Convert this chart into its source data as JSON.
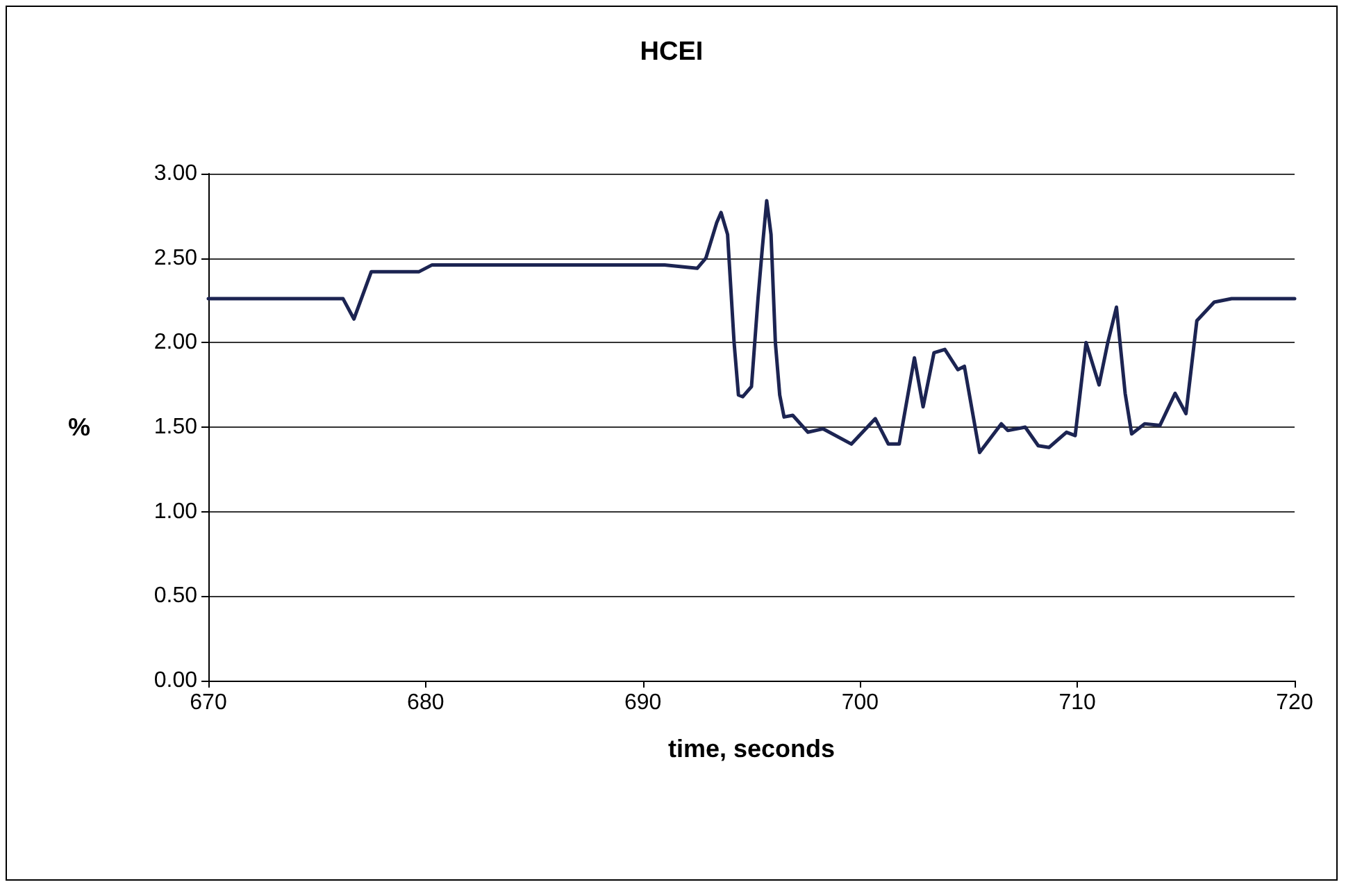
{
  "chart_data": {
    "type": "line",
    "title": "HCEI",
    "xlabel": "time, seconds",
    "ylabel": "%",
    "x": [
      670,
      676.2,
      676.7,
      677.5,
      679.7,
      680.3,
      691.0,
      692.5,
      692.9,
      693.4,
      693.6,
      693.9,
      694.2,
      694.4,
      694.6,
      695.0,
      695.3,
      695.5,
      695.7,
      695.9,
      696.1,
      696.3,
      696.5,
      696.9,
      697.6,
      698.3,
      699.6,
      700.7,
      701.3,
      701.8,
      702.5,
      702.9,
      703.4,
      703.9,
      704.5,
      704.8,
      705.5,
      706.5,
      706.8,
      707.6,
      708.2,
      708.7,
      709.5,
      709.9,
      710.4,
      711.0,
      711.4,
      711.8,
      712.2,
      712.5,
      713.1,
      713.8,
      714.5,
      715.0,
      715.5,
      716.3,
      717.1,
      720
    ],
    "series": [
      {
        "color": "#1c2452",
        "values": [
          2.26,
          2.26,
          2.14,
          2.42,
          2.42,
          2.46,
          2.46,
          2.44,
          2.5,
          2.71,
          2.77,
          2.64,
          2.0,
          1.69,
          1.68,
          1.74,
          2.26,
          2.56,
          2.84,
          2.64,
          2.0,
          1.69,
          1.56,
          1.57,
          1.47,
          1.49,
          1.4,
          1.55,
          1.4,
          1.4,
          1.91,
          1.62,
          1.94,
          1.96,
          1.84,
          1.86,
          1.35,
          1.52,
          1.48,
          1.5,
          1.39,
          1.38,
          1.47,
          1.45,
          2.0,
          1.75,
          2.0,
          2.21,
          1.7,
          1.46,
          1.52,
          1.51,
          1.7,
          1.58,
          2.13,
          2.24,
          2.26,
          2.26
        ]
      }
    ],
    "xlim": [
      670,
      720
    ],
    "xticks": [
      670,
      680,
      690,
      700,
      710,
      720
    ],
    "ylim": [
      0,
      3
    ],
    "yticks": [
      {
        "value": 0,
        "label": "0.00"
      },
      {
        "value": 0.5,
        "label": "0.50"
      },
      {
        "value": 1,
        "label": "1.00"
      },
      {
        "value": 1.5,
        "label": "1.50"
      },
      {
        "value": 2,
        "label": "2.00"
      },
      {
        "value": 2.5,
        "label": "2.50"
      },
      {
        "value": 3,
        "label": "3.00"
      }
    ],
    "grid": "y",
    "marker": "none",
    "line_style": "solid"
  }
}
